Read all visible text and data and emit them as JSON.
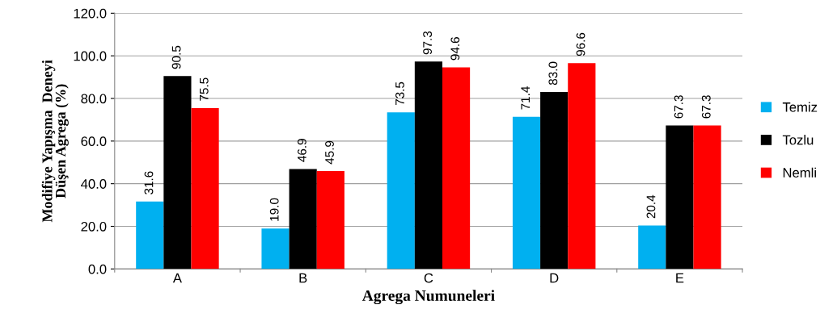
{
  "chart_data": {
    "type": "bar",
    "xlabel": "Agrega Numuneleri",
    "ylabel": "Modifiye Yapışma  Deneyi\nDüşen Agrega (%)",
    "categories": [
      "A",
      "B",
      "C",
      "D",
      "E"
    ],
    "series": [
      {
        "name": "Temiz",
        "color": "#00b0f0",
        "values": [
          31.6,
          19.0,
          73.5,
          71.4,
          20.4
        ],
        "value_labels": [
          "31.6",
          "19.0",
          "73.5",
          "71.4",
          "20.4"
        ]
      },
      {
        "name": "Tozlu",
        "color": "#000000",
        "values": [
          90.5,
          46.9,
          97.3,
          83.0,
          67.3
        ],
        "value_labels": [
          "90.5",
          "46.9",
          "97.3",
          "83.0",
          "67.3"
        ]
      },
      {
        "name": "Nemli",
        "color": "#ff0000",
        "values": [
          75.5,
          45.9,
          94.6,
          96.6,
          67.3
        ],
        "value_labels": [
          "75.5",
          "45.9",
          "94.6",
          "96.6",
          "67.3"
        ]
      }
    ],
    "ylim": [
      0,
      120
    ],
    "yticks": [
      {
        "value": 0,
        "label": "0.0"
      },
      {
        "value": 20,
        "label": "20.0"
      },
      {
        "value": 40,
        "label": "40.0"
      },
      {
        "value": 60,
        "label": "60.0"
      },
      {
        "value": 80,
        "label": "80.0"
      },
      {
        "value": 100,
        "label": "100.0"
      },
      {
        "value": 120,
        "label": "120.0"
      }
    ],
    "grid": "y",
    "legend": "right"
  }
}
